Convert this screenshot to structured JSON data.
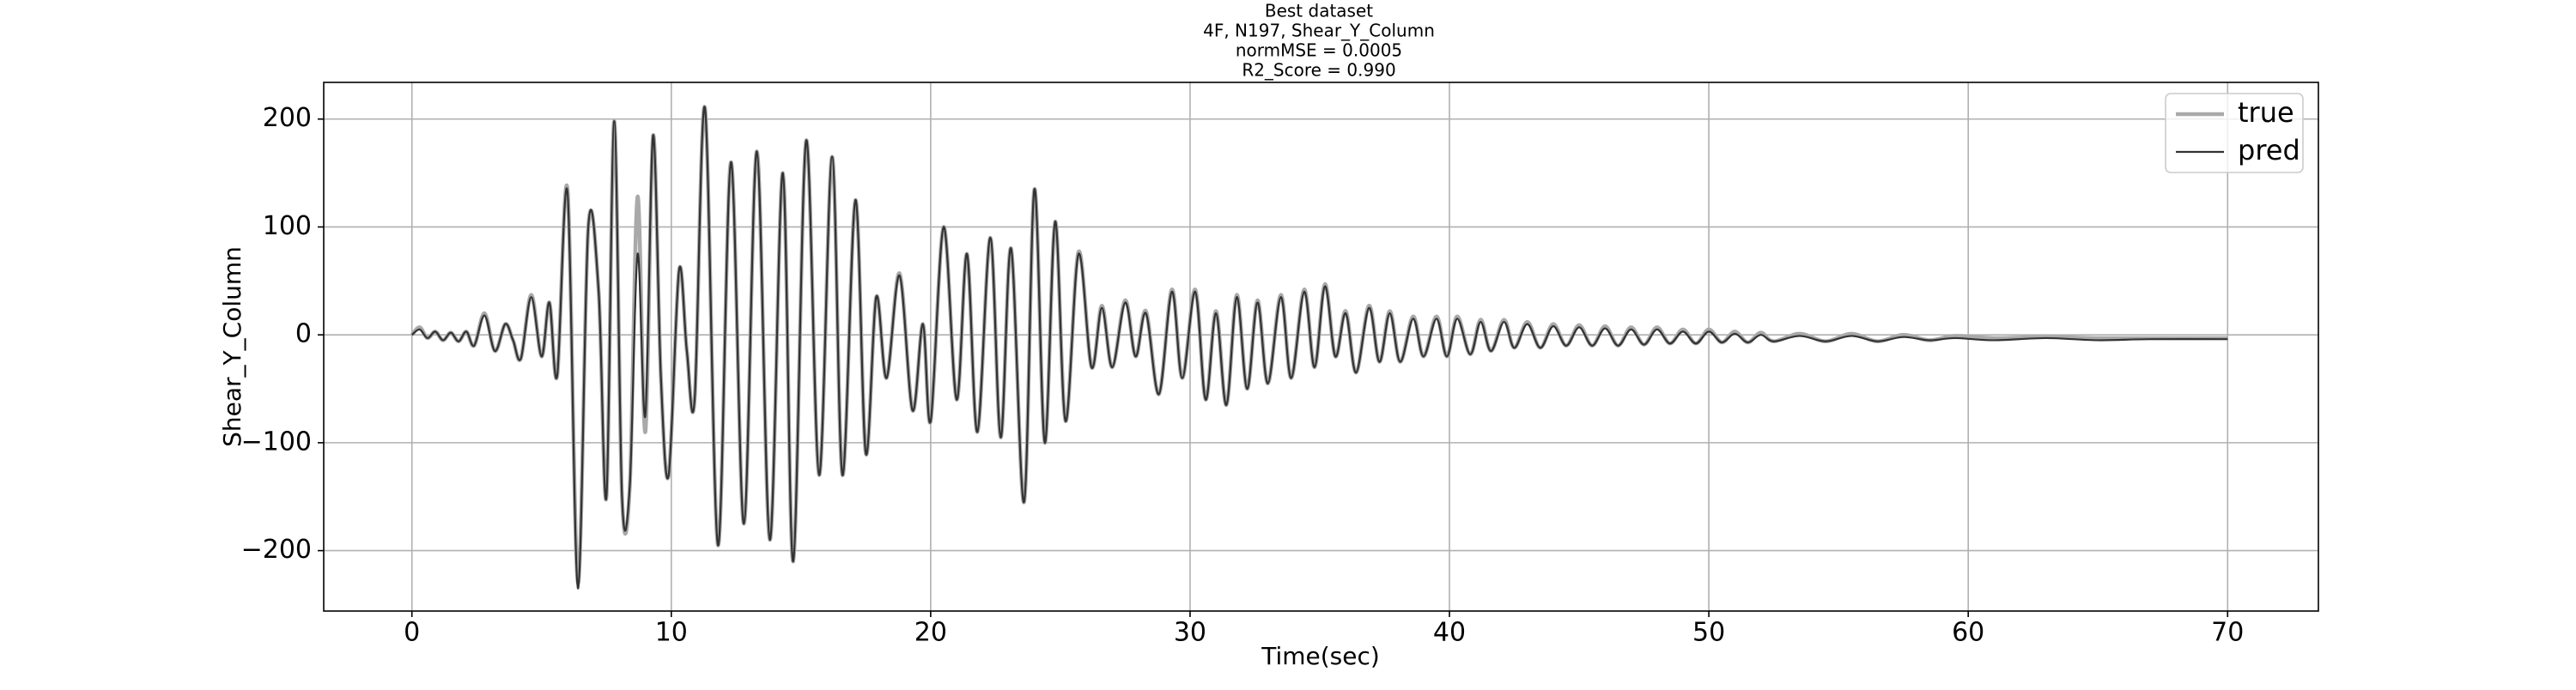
{
  "chart_data": {
    "type": "line",
    "title": "Best dataset",
    "subtitle": [
      "4F, N197, Shear_Y_Column",
      "normMSE = 0.0005",
      "R2_Score = 0.990"
    ],
    "x_label": "Time(sec)",
    "y_label": "Shear_Y_Column",
    "xlim": [
      -3.4,
      73.5
    ],
    "ylim": [
      -256,
      234
    ],
    "xticks": [
      0,
      10,
      20,
      30,
      40,
      50,
      60,
      70
    ],
    "yticks": [
      {
        "value": -200,
        "label": "−200"
      },
      {
        "value": -100,
        "label": "−100"
      },
      0,
      100,
      200
    ],
    "grid": true,
    "legend": "upper right",
    "x": [
      0,
      0.3,
      0.6,
      0.9,
      1.2,
      1.5,
      1.8,
      2.1,
      2.4,
      2.8,
      3.2,
      3.6,
      3.9,
      4.2,
      4.6,
      5.0,
      5.3,
      5.6,
      6.0,
      6.4,
      6.8,
      7.2,
      7.5,
      7.8,
      8.1,
      8.4,
      8.7,
      9.0,
      9.3,
      9.6,
      9.9,
      10.3,
      10.6,
      10.9,
      11.3,
      11.8,
      12.3,
      12.8,
      13.3,
      13.8,
      14.3,
      14.7,
      15.2,
      15.7,
      16.2,
      16.6,
      17.1,
      17.5,
      17.9,
      18.3,
      18.8,
      19.3,
      19.7,
      20.0,
      20.5,
      21.0,
      21.4,
      21.8,
      22.3,
      22.7,
      23.1,
      23.6,
      24.0,
      24.4,
      24.8,
      25.2,
      25.7,
      26.2,
      26.6,
      27.0,
      27.5,
      27.9,
      28.3,
      28.8,
      29.3,
      29.7,
      30.2,
      30.6,
      31.0,
      31.4,
      31.8,
      32.2,
      32.6,
      33.0,
      33.5,
      33.9,
      34.4,
      34.8,
      35.2,
      35.6,
      36.0,
      36.4,
      36.9,
      37.3,
      37.7,
      38.1,
      38.6,
      39.0,
      39.5,
      39.9,
      40.3,
      40.8,
      41.2,
      41.6,
      42.1,
      42.5,
      43.0,
      43.5,
      44.0,
      44.5,
      45.0,
      45.5,
      46.0,
      46.5,
      47.0,
      47.5,
      48.0,
      48.5,
      49.0,
      49.5,
      50.0,
      50.5,
      51.0,
      51.5,
      52.0,
      52.5,
      53.5,
      54.5,
      55.5,
      56.5,
      57.5,
      58.5,
      59.5,
      61,
      63,
      65,
      67,
      70
    ],
    "series": [
      {
        "name": "true",
        "color": "#a9a9a9",
        "values": [
          0,
          7,
          -3,
          3,
          -5,
          2,
          -6,
          3,
          -10,
          20,
          -15,
          10,
          -5,
          -22,
          37,
          -20,
          30,
          -38,
          135,
          -230,
          100,
          40,
          -150,
          198,
          -150,
          -140,
          128,
          -90,
          185,
          -40,
          -130,
          60,
          -15,
          -60,
          210,
          -195,
          160,
          -175,
          170,
          -190,
          150,
          -210,
          180,
          -130,
          165,
          -130,
          125,
          -110,
          35,
          -40,
          57,
          -70,
          10,
          -80,
          100,
          -60,
          75,
          -90,
          90,
          -95,
          80,
          -155,
          135,
          -100,
          105,
          -80,
          77,
          -30,
          27,
          -30,
          32,
          -20,
          22,
          -55,
          42,
          -40,
          42,
          -60,
          22,
          -65,
          37,
          -50,
          32,
          -45,
          37,
          -40,
          42,
          -30,
          47,
          -20,
          22,
          -35,
          27,
          -25,
          22,
          -25,
          17,
          -20,
          17,
          -20,
          17,
          -18,
          14,
          -15,
          14,
          -12,
          12,
          -12,
          10,
          -10,
          9,
          -10,
          8,
          -10,
          7,
          -9,
          7,
          -8,
          5,
          -8,
          5,
          -7,
          3,
          -7,
          2,
          -6,
          1,
          -6,
          1,
          -6,
          0,
          -5,
          -1,
          -3,
          -2,
          -3,
          -3,
          -3
        ]
      },
      {
        "name": "pred",
        "color": "#333333",
        "values": [
          0,
          5,
          -3,
          3,
          -5,
          2,
          -6,
          3,
          -10,
          18,
          -15,
          10,
          -5,
          -22,
          35,
          -20,
          30,
          -38,
          132,
          -235,
          100,
          40,
          -150,
          198,
          -150,
          -140,
          75,
          -75,
          185,
          -40,
          -130,
          60,
          -15,
          -60,
          210,
          -195,
          160,
          -175,
          170,
          -190,
          150,
          -210,
          180,
          -130,
          165,
          -130,
          125,
          -110,
          35,
          -40,
          55,
          -70,
          10,
          -80,
          100,
          -60,
          75,
          -90,
          90,
          -95,
          80,
          -155,
          135,
          -100,
          105,
          -80,
          75,
          -30,
          25,
          -30,
          30,
          -20,
          20,
          -55,
          40,
          -40,
          40,
          -60,
          20,
          -65,
          35,
          -50,
          30,
          -45,
          35,
          -40,
          40,
          -30,
          45,
          -20,
          20,
          -35,
          25,
          -25,
          20,
          -25,
          15,
          -20,
          15,
          -20,
          15,
          -18,
          12,
          -15,
          12,
          -12,
          10,
          -12,
          8,
          -10,
          7,
          -10,
          6,
          -10,
          5,
          -9,
          5,
          -8,
          3,
          -8,
          3,
          -7,
          1,
          -7,
          0,
          -6,
          -1,
          -6,
          -1,
          -6,
          -2,
          -5,
          -3,
          -5,
          -3,
          -5,
          -4,
          -4
        ]
      }
    ]
  }
}
